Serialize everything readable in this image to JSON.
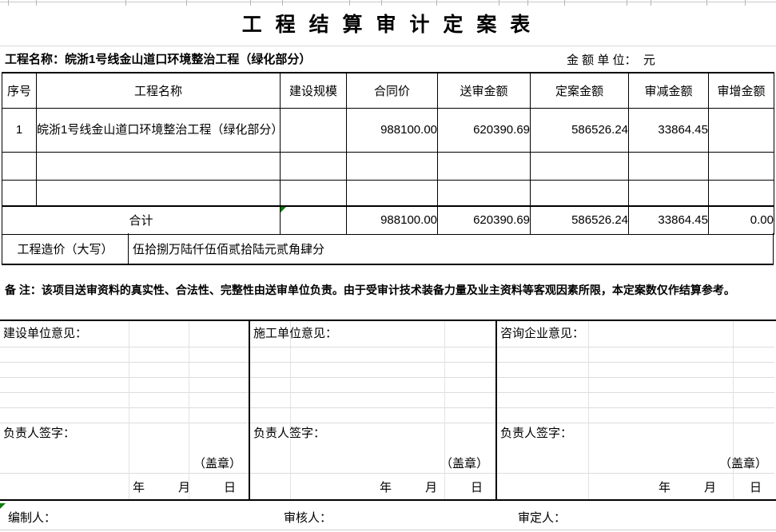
{
  "title": "工 程 结 算 审 计 定 案 表",
  "meta": {
    "project": "工程名称：皖浙1号线金山道口环境整治工程（绿化部分）",
    "unit": "金 额 单 位：  元"
  },
  "table": {
    "headers": [
      "序号",
      "工程名称",
      "建设规模",
      "合同价",
      "送审金额",
      "定案金额",
      "审减金额",
      "审增金额"
    ],
    "row1": {
      "seq": "1",
      "name": "皖浙1号线金山道口环境整治工程（绿化部分）",
      "scale": "",
      "contract": "988100.00",
      "submitted": "620390.69",
      "finalized": "586526.24",
      "reduced": "33864.45",
      "increased": ""
    },
    "total_row": {
      "label": "合计",
      "scale": "",
      "contract": "988100.00",
      "submitted": "620390.69",
      "finalized": "586526.24",
      "reduced": "33864.45",
      "increased": "0.00"
    }
  },
  "cost_in_words": {
    "label": "工程造价（大写）",
    "value": "伍拾捌万陆仟伍佰贰拾陆元贰角肆分"
  },
  "remark": "备  注：该项目送审资料的真实性、合法性、完整性由送审单位负责。由于受审计技术装备力量及业主资料等客观因素所限，本定案数仅作结算参考。",
  "opinions": [
    {
      "heading": "建设单位意见：",
      "sign_label": "负责人签字：",
      "seal_label": "（盖章）",
      "date": {
        "y": "年",
        "m": "月",
        "d": "日"
      }
    },
    {
      "heading": "施工单位意见：",
      "sign_label": "负责人签字：",
      "seal_label": "（盖章）",
      "date": {
        "y": "年",
        "m": "月",
        "d": "日"
      }
    },
    {
      "heading": "咨询企业意见：",
      "sign_label": "负责人签字：",
      "seal_label": "（盖章）",
      "date": {
        "y": "年",
        "m": "月",
        "d": "日"
      }
    }
  ],
  "footer": {
    "preparer": "编制人：",
    "reviewer": "审核人：",
    "approver": "审定人："
  }
}
